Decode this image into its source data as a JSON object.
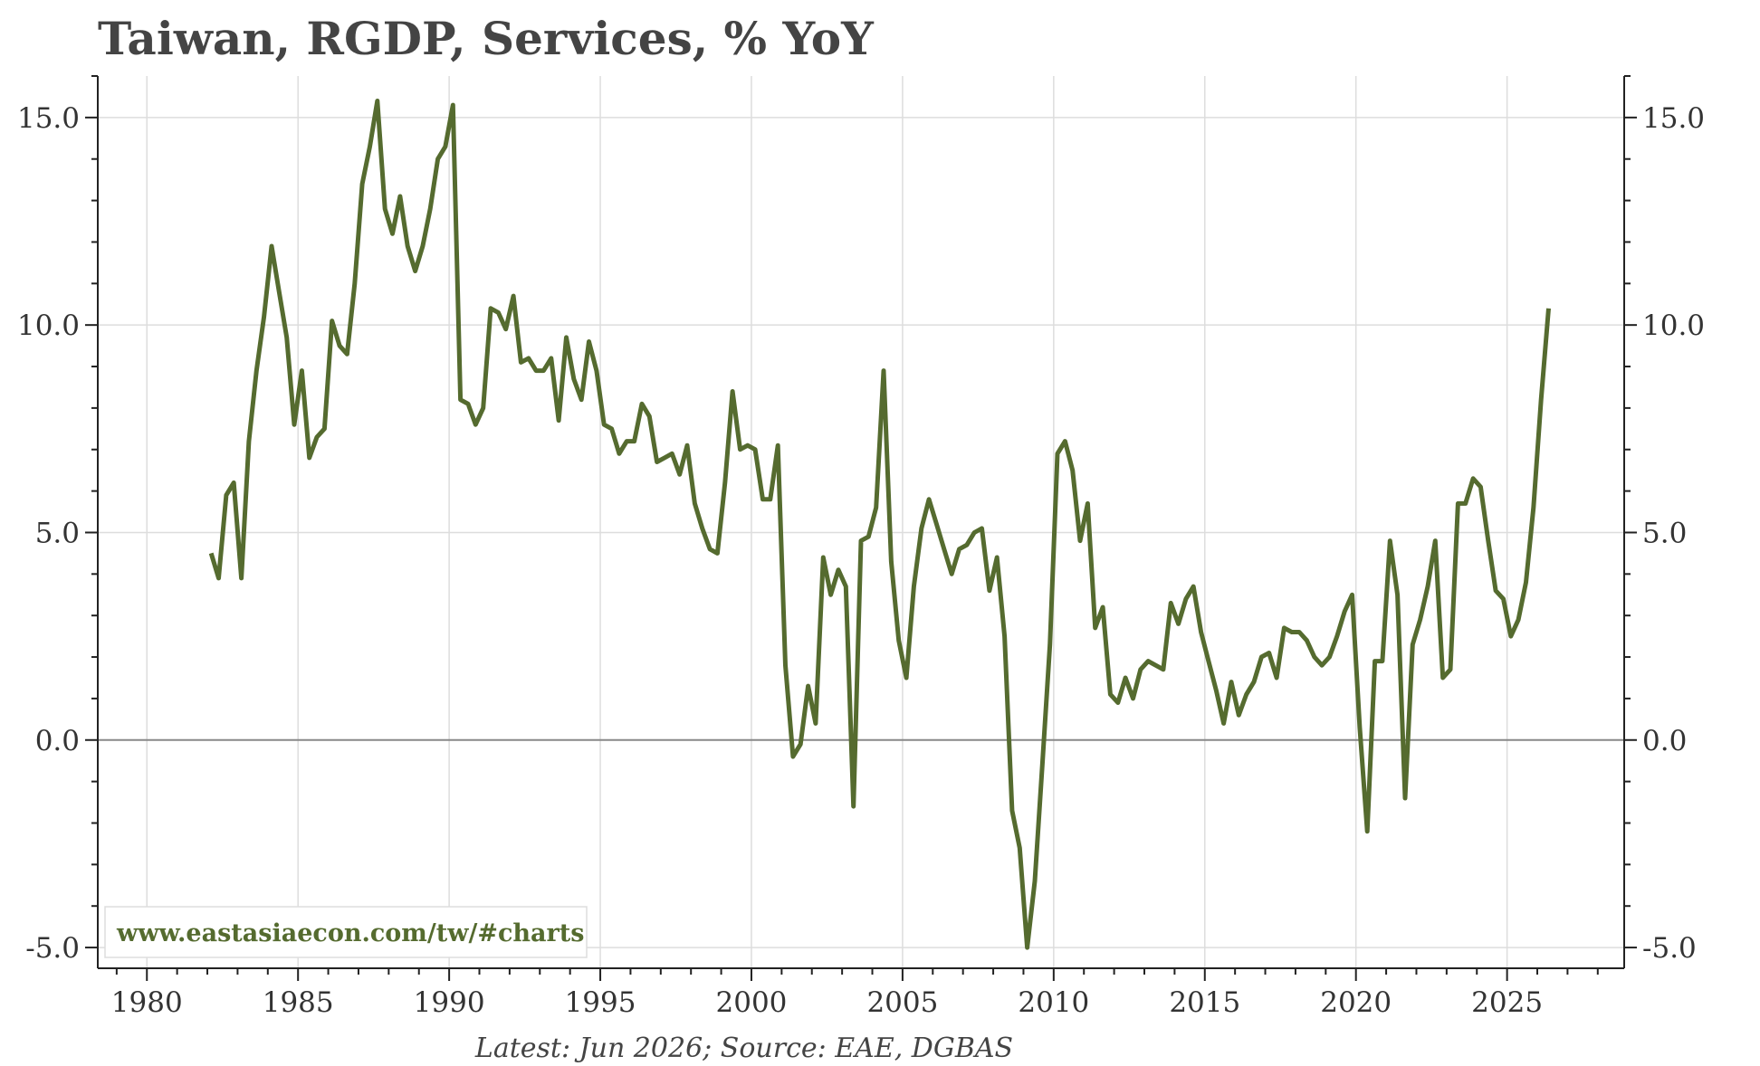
{
  "colors": {
    "series": "#556b2f",
    "grid": "#dddddd",
    "axis": "#222222",
    "zero_line": "#888888",
    "text": "#333333"
  },
  "chart_data": {
    "type": "line",
    "title": "Taiwan, RGDP, Services, % YoY",
    "xlabel": "",
    "ylabel": "",
    "source": "Latest: Jun 2026; Source: EAE, DGBAS",
    "watermark": "www.eastasiaecon.com/tw/#charts",
    "xlim": [
      1978.375,
      2028.875
    ],
    "ylim": [
      -5.5,
      16.0
    ],
    "x_ticks": [
      1980,
      1985,
      1990,
      1995,
      2000,
      2005,
      2010,
      2015,
      2020,
      2025
    ],
    "y_ticks": [
      -5.0,
      0.0,
      5.0,
      10.0,
      15.0
    ],
    "y_tick_labels": [
      "-5.0",
      "0.0",
      "5.0",
      "10.0",
      "15.0"
    ],
    "right_axis": true,
    "grid": true,
    "series": [
      {
        "x": [
          1982.125,
          1982.375,
          1982.625,
          1982.875,
          1983.125,
          1983.375,
          1983.625,
          1983.875,
          1984.125,
          1984.375,
          1984.625,
          1984.875,
          1985.125,
          1985.375,
          1985.625,
          1985.875,
          1986.125,
          1986.375,
          1986.625,
          1986.875,
          1987.125,
          1987.375,
          1987.625,
          1987.875,
          1988.125,
          1988.375,
          1988.625,
          1988.875,
          1989.125,
          1989.375,
          1989.625,
          1989.875,
          1990.125,
          1990.375,
          1990.625,
          1990.875,
          1991.125,
          1991.375,
          1991.625,
          1991.875,
          1992.125,
          1992.375,
          1992.625,
          1992.875,
          1993.125,
          1993.375,
          1993.625,
          1993.875,
          1994.125,
          1994.375,
          1994.625,
          1994.875,
          1995.125,
          1995.375,
          1995.625,
          1995.875,
          1996.125,
          1996.375,
          1996.625,
          1996.875,
          1997.125,
          1997.375,
          1997.625,
          1997.875,
          1998.125,
          1998.375,
          1998.625,
          1998.875,
          1999.125,
          1999.375,
          1999.625,
          1999.875,
          2000.125,
          2000.375,
          2000.625,
          2000.875,
          2001.125,
          2001.375,
          2001.625,
          2001.875,
          2002.125,
          2002.375,
          2002.625,
          2002.875,
          2003.125,
          2003.375,
          2003.625,
          2003.875,
          2004.125,
          2004.375,
          2004.625,
          2004.875,
          2005.125,
          2005.375,
          2005.625,
          2005.875,
          2006.125,
          2006.375,
          2006.625,
          2006.875,
          2007.125,
          2007.375,
          2007.625,
          2007.875,
          2008.125,
          2008.375,
          2008.625,
          2008.875,
          2009.125,
          2009.375,
          2009.625,
          2009.875,
          2010.125,
          2010.375,
          2010.625,
          2010.875,
          2011.125,
          2011.375,
          2011.625,
          2011.875,
          2012.125,
          2012.375,
          2012.625,
          2012.875,
          2013.125,
          2013.375,
          2013.625,
          2013.875,
          2014.125,
          2014.375,
          2014.625,
          2014.875,
          2015.125,
          2015.375,
          2015.625,
          2015.875,
          2016.125,
          2016.375,
          2016.625,
          2016.875,
          2017.125,
          2017.375,
          2017.625,
          2017.875,
          2018.125,
          2018.375,
          2018.625,
          2018.875,
          2019.125,
          2019.375,
          2019.625,
          2019.875,
          2020.125,
          2020.375,
          2020.625,
          2020.875,
          2021.125,
          2021.375,
          2021.625,
          2021.875,
          2022.125,
          2022.375,
          2022.625,
          2022.875,
          2023.125,
          2023.375,
          2023.625,
          2023.875,
          2024.125,
          2024.375,
          2024.625,
          2024.875,
          2025.125,
          2025.375,
          2025.625,
          2025.875,
          2026.125,
          2026.375
        ],
        "values": [
          4.5,
          3.9,
          5.9,
          6.2,
          3.9,
          7.2,
          8.9,
          10.2,
          11.9,
          10.8,
          9.7,
          7.6,
          8.9,
          6.8,
          7.3,
          7.5,
          10.1,
          9.5,
          9.3,
          11.0,
          13.4,
          14.3,
          15.4,
          12.8,
          12.2,
          13.1,
          11.9,
          11.3,
          11.9,
          12.8,
          14.0,
          14.3,
          15.3,
          8.2,
          8.1,
          7.6,
          8.0,
          10.4,
          10.3,
          9.9,
          10.7,
          9.1,
          9.2,
          8.9,
          8.9,
          9.2,
          7.7,
          9.7,
          8.7,
          8.2,
          9.6,
          8.9,
          7.6,
          7.5,
          6.9,
          7.2,
          7.2,
          8.1,
          7.8,
          6.7,
          6.8,
          6.9,
          6.4,
          7.1,
          5.7,
          5.1,
          4.6,
          4.5,
          6.2,
          8.4,
          7.0,
          7.1,
          7.0,
          5.8,
          5.8,
          7.1,
          1.8,
          -0.4,
          -0.1,
          1.3,
          0.4,
          4.4,
          3.5,
          4.1,
          3.7,
          -1.6,
          4.8,
          4.9,
          5.6,
          8.9,
          4.3,
          2.4,
          1.5,
          3.7,
          5.1,
          5.8,
          5.2,
          4.6,
          4.0,
          4.6,
          4.7,
          5.0,
          5.1,
          3.6,
          4.4,
          2.5,
          -1.7,
          -2.6,
          -5.0,
          -3.4,
          -0.6,
          2.3,
          6.9,
          7.2,
          6.5,
          4.8,
          5.7,
          2.7,
          3.2,
          1.1,
          0.9,
          1.5,
          1.0,
          1.7,
          1.9,
          1.8,
          1.7,
          3.3,
          2.8,
          3.4,
          3.7,
          2.6,
          1.9,
          1.2,
          0.4,
          1.4,
          0.6,
          1.1,
          1.4,
          2.0,
          2.1,
          1.5,
          2.7,
          2.6,
          2.6,
          2.4,
          2.0,
          1.8,
          2.0,
          2.5,
          3.1,
          3.5,
          0.3,
          -2.2,
          1.9,
          1.9,
          4.8,
          3.5,
          -1.4,
          2.3,
          2.9,
          3.7,
          4.8,
          1.5,
          1.7,
          5.7,
          5.7,
          6.3,
          6.1,
          4.8,
          3.6,
          3.4,
          2.5,
          2.9,
          3.8,
          5.6,
          8.2,
          10.4
        ]
      }
    ]
  }
}
